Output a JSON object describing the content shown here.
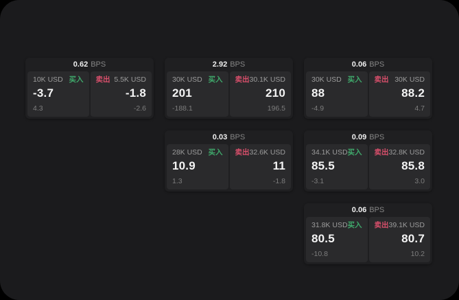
{
  "page": {
    "background": "#000000",
    "surface_color": "#1b1b1d",
    "card_color": "#1f1f21",
    "panel_color": "#2a2a2c"
  },
  "labels": {
    "bps_unit": "BPS",
    "buy": "买入",
    "sell": "卖出"
  },
  "colors": {
    "buy_accent": "#3fa86b",
    "sell_accent": "#d84f6b"
  },
  "cards": [
    {
      "bps": "0.62",
      "buy": {
        "amount": "10K USD",
        "value": "-3.7",
        "sub": "4.3"
      },
      "sell": {
        "amount": "5.5K USD",
        "value": "-1.8",
        "sub": "-2.6"
      }
    },
    {
      "bps": "2.92",
      "buy": {
        "amount": "30K USD",
        "value": "201",
        "sub": "-188.1"
      },
      "sell": {
        "amount": "30.1K USD",
        "value": "210",
        "sub": "196.5"
      }
    },
    {
      "bps": "0.06",
      "buy": {
        "amount": "30K USD",
        "value": "88",
        "sub": "-4.9"
      },
      "sell": {
        "amount": "30K USD",
        "value": "88.2",
        "sub": "4.7"
      }
    },
    {
      "bps": "0.03",
      "buy": {
        "amount": "28K USD",
        "value": "10.9",
        "sub": "1.3"
      },
      "sell": {
        "amount": "32.6K USD",
        "value": "11",
        "sub": "-1.8"
      }
    },
    {
      "bps": "0.09",
      "buy": {
        "amount": "34.1K USD",
        "value": "85.5",
        "sub": "-3.1"
      },
      "sell": {
        "amount": "32.8K USD",
        "value": "85.8",
        "sub": "3.0"
      }
    },
    {
      "bps": "0.06",
      "buy": {
        "amount": "31.8K USD",
        "value": "80.5",
        "sub": "-10.8"
      },
      "sell": {
        "amount": "39.1K USD",
        "value": "80.7",
        "sub": "10.2"
      }
    }
  ]
}
